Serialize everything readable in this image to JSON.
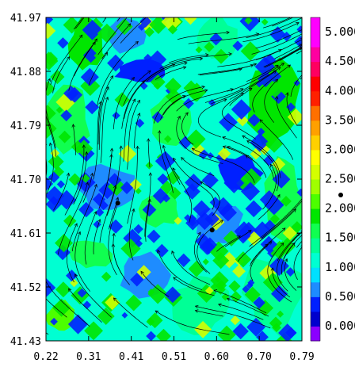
{
  "chart_data": {
    "type": "heatmap",
    "title": "",
    "xlabel": "",
    "ylabel": "",
    "x_ticks": [
      "0.22",
      "0.31",
      "0.41",
      "0.51",
      "0.60",
      "0.70",
      "0.79"
    ],
    "y_ticks": [
      "41.97",
      "41.88",
      "41.79",
      "41.70",
      "41.61",
      "41.52",
      "41.43"
    ],
    "xlim": [
      0.22,
      0.79
    ],
    "ylim": [
      41.43,
      41.97
    ],
    "colorbar": {
      "labels": [
        "0.000",
        "0.500",
        "1.000",
        "1.500",
        "2.000",
        "2.500",
        "3.000",
        "3.500",
        "4.000",
        "4.500",
        "5.000"
      ],
      "range": [
        0,
        5.5
      ],
      "bands": [
        {
          "from": 0.0,
          "to": 0.25,
          "color": "#8b00ff"
        },
        {
          "from": 0.25,
          "to": 0.5,
          "color": "#0000cd"
        },
        {
          "from": 0.5,
          "to": 0.75,
          "color": "#0020ff"
        },
        {
          "from": 0.75,
          "to": 1.0,
          "color": "#1e8cff"
        },
        {
          "from": 1.0,
          "to": 1.25,
          "color": "#00e0ff"
        },
        {
          "from": 1.25,
          "to": 1.5,
          "color": "#00ffd2"
        },
        {
          "from": 1.5,
          "to": 1.75,
          "color": "#00ff96"
        },
        {
          "from": 1.75,
          "to": 2.0,
          "color": "#10ff50"
        },
        {
          "from": 2.0,
          "to": 2.25,
          "color": "#00e600"
        },
        {
          "from": 2.25,
          "to": 2.5,
          "color": "#4cff00"
        },
        {
          "from": 2.5,
          "to": 2.75,
          "color": "#a0ff00"
        },
        {
          "from": 2.75,
          "to": 3.0,
          "color": "#d4ff00"
        },
        {
          "from": 3.0,
          "to": 3.25,
          "color": "#ffff00"
        },
        {
          "from": 3.25,
          "to": 3.5,
          "color": "#ffd000"
        },
        {
          "from": 3.5,
          "to": 3.75,
          "color": "#ffa000"
        },
        {
          "from": 3.75,
          "to": 4.0,
          "color": "#ff7000"
        },
        {
          "from": 4.0,
          "to": 4.25,
          "color": "#ff2000"
        },
        {
          "from": 4.25,
          "to": 4.5,
          "color": "#ff0000"
        },
        {
          "from": 4.5,
          "to": 4.75,
          "color": "#ff0060"
        },
        {
          "from": 4.75,
          "to": 5.0,
          "color": "#ff00a0"
        },
        {
          "from": 5.0,
          "to": 5.5,
          "color": "#ff00ff"
        }
      ]
    },
    "markers": [
      {
        "x": 0.38,
        "y": 41.66
      },
      {
        "x": 0.59,
        "y": 41.615
      }
    ],
    "field_regions": [
      {
        "x0": 0.22,
        "x1": 0.79,
        "y0": 41.43,
        "y1": 41.97,
        "value": 1.25
      },
      {
        "x0": 0.22,
        "x1": 0.32,
        "y0": 41.74,
        "y1": 41.86,
        "value": 1.9
      },
      {
        "x0": 0.27,
        "x1": 0.35,
        "y0": 41.88,
        "y1": 41.97,
        "value": 2.0
      },
      {
        "x0": 0.35,
        "x1": 0.44,
        "y0": 41.91,
        "y1": 41.97,
        "value": 0.8
      },
      {
        "x0": 0.37,
        "x1": 0.5,
        "y0": 41.86,
        "y1": 41.9,
        "value": 0.6
      },
      {
        "x0": 0.45,
        "x1": 0.55,
        "y0": 41.75,
        "y1": 41.84,
        "value": 1.9
      },
      {
        "x0": 0.55,
        "x1": 0.65,
        "y0": 41.9,
        "y1": 41.97,
        "value": 1.7
      },
      {
        "x0": 0.66,
        "x1": 0.79,
        "y0": 41.75,
        "y1": 41.9,
        "value": 2.2
      },
      {
        "x0": 0.7,
        "x1": 0.79,
        "y0": 41.58,
        "y1": 41.74,
        "value": 1.9
      },
      {
        "x0": 0.66,
        "x1": 0.79,
        "y0": 41.44,
        "y1": 41.58,
        "value": 1.6
      },
      {
        "x0": 0.29,
        "x1": 0.42,
        "y0": 41.64,
        "y1": 41.73,
        "value": 0.8
      },
      {
        "x0": 0.43,
        "x1": 0.52,
        "y0": 41.62,
        "y1": 41.68,
        "value": 1.9
      },
      {
        "x0": 0.55,
        "x1": 0.66,
        "y0": 41.59,
        "y1": 41.66,
        "value": 0.8
      },
      {
        "x0": 0.27,
        "x1": 0.37,
        "y0": 41.55,
        "y1": 41.6,
        "value": 1.8
      },
      {
        "x0": 0.38,
        "x1": 0.5,
        "y0": 41.5,
        "y1": 41.58,
        "value": 0.9
      },
      {
        "x0": 0.5,
        "x1": 0.63,
        "y0": 41.44,
        "y1": 41.54,
        "value": 1.7
      },
      {
        "x0": 0.22,
        "x1": 0.29,
        "y0": 41.44,
        "y1": 41.5,
        "value": 2.4
      },
      {
        "x0": 0.6,
        "x1": 0.7,
        "y0": 41.68,
        "y1": 41.74,
        "value": 0.7
      }
    ],
    "scattered_cells": {
      "blue_value": 0.55,
      "green_value": 2.1,
      "bright_value": 2.8
    }
  }
}
